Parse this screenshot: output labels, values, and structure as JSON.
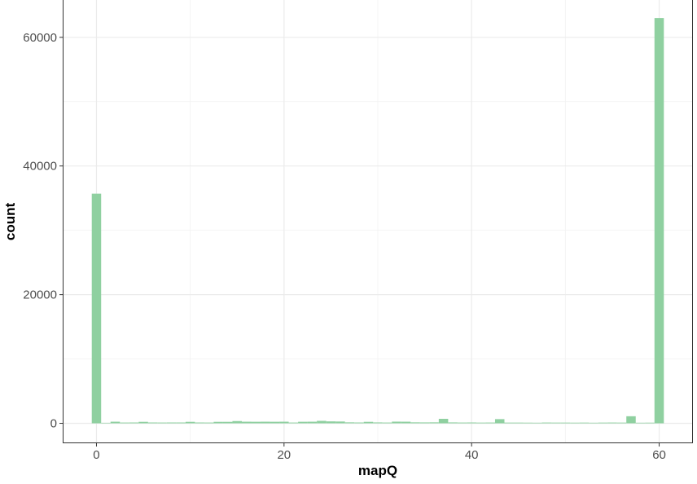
{
  "chart_data": {
    "type": "bar",
    "xlabel": "mapQ",
    "ylabel": "count",
    "x_ticks": [
      0,
      20,
      40,
      60
    ],
    "y_ticks": [
      0,
      20000,
      40000,
      60000
    ],
    "xlim": [
      -3.6,
      63.6
    ],
    "ylim": [
      -3100,
      65800
    ],
    "bin_width": 1,
    "bar_color": "#8fd0a0",
    "grid": true,
    "series": [
      {
        "x": [
          0,
          1,
          2,
          3,
          4,
          5,
          6,
          7,
          8,
          9,
          10,
          11,
          12,
          13,
          14,
          15,
          16,
          17,
          18,
          19,
          20,
          21,
          22,
          23,
          24,
          25,
          26,
          27,
          28,
          29,
          30,
          31,
          32,
          33,
          34,
          35,
          36,
          37,
          38,
          39,
          40,
          41,
          42,
          43,
          44,
          45,
          46,
          47,
          48,
          49,
          50,
          51,
          52,
          53,
          54,
          55,
          56,
          57,
          58,
          59,
          60
        ],
        "values": [
          35700,
          80,
          250,
          120,
          130,
          230,
          130,
          120,
          130,
          130,
          230,
          130,
          120,
          230,
          230,
          350,
          250,
          240,
          250,
          240,
          250,
          120,
          240,
          250,
          380,
          300,
          280,
          150,
          130,
          230,
          140,
          120,
          260,
          250,
          150,
          140,
          150,
          700,
          140,
          120,
          130,
          110,
          120,
          650,
          110,
          110,
          100,
          90,
          120,
          110,
          110,
          100,
          110,
          90,
          110,
          120,
          110,
          1100,
          90,
          100,
          63000
        ]
      }
    ]
  }
}
